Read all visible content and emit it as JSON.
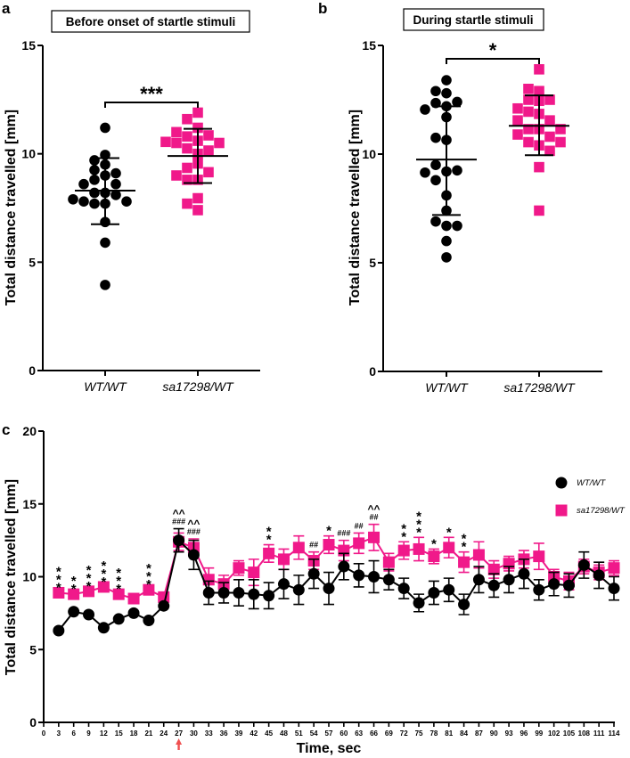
{
  "colors": {
    "wt": "#000000",
    "mutant": "#f0198a",
    "arrow": "#f05050"
  },
  "chart_data": [
    {
      "type": "scatter",
      "panel": "a",
      "title": "Before onset of startle stimuli",
      "ylabel": "Total distance travelled [mm]",
      "xlabel": "",
      "ylim": [
        0,
        15
      ],
      "yticks": [
        0,
        5,
        10,
        15
      ],
      "categories": [
        "WT/WT",
        "sa17298/WT"
      ],
      "significance": "***",
      "series": [
        {
          "name": "WT/WT",
          "marker": "circle",
          "mean": 8.3,
          "sd_upper": 9.8,
          "sd_lower": 6.75,
          "values": [
            11.2,
            9.95,
            9.7,
            9.5,
            9.25,
            9.1,
            9.0,
            8.8,
            8.6,
            8.6,
            8.2,
            8.2,
            8.1,
            7.8,
            7.7,
            7.7,
            7.8,
            7.9,
            6.85,
            5.9,
            3.95
          ]
        },
        {
          "name": "sa17298/WT",
          "marker": "square",
          "mean": 9.9,
          "sd_upper": 11.15,
          "sd_lower": 8.65,
          "values": [
            11.9,
            11.6,
            11.2,
            10.8,
            10.85,
            11.0,
            10.6,
            10.5,
            10.5,
            10.55,
            10.25,
            10.0,
            10.15,
            9.55,
            9.35,
            9.15,
            8.8,
            8.8,
            9.0,
            7.95,
            7.7,
            7.4
          ]
        }
      ]
    },
    {
      "type": "scatter",
      "panel": "b",
      "title": "During startle stimuli",
      "ylabel": "Total distance travelled [mm]",
      "xlabel": "",
      "ylim": [
        0,
        15
      ],
      "yticks": [
        0,
        5,
        10,
        15
      ],
      "categories": [
        "WT/WT",
        "sa17298/WT"
      ],
      "significance": "*",
      "series": [
        {
          "name": "WT/WT",
          "marker": "circle",
          "mean": 9.75,
          "sd_upper": 12.2,
          "sd_lower": 7.2,
          "values": [
            13.4,
            12.8,
            12.9,
            12.2,
            12.35,
            12.4,
            12.05,
            11.7,
            10.65,
            10.75,
            9.2,
            9.5,
            9.25,
            9.15,
            8.8,
            8.1,
            7.4,
            6.7,
            6.9,
            6.7,
            6.0,
            5.25
          ]
        },
        {
          "name": "sa17298/WT",
          "marker": "square",
          "mean": 11.3,
          "sd_upper": 12.7,
          "sd_lower": 9.95,
          "values": [
            13.9,
            12.9,
            13.0,
            12.5,
            12.45,
            12.5,
            12.1,
            11.85,
            11.95,
            11.55,
            11.55,
            11.15,
            11.15,
            11.15,
            10.8,
            10.9,
            10.4,
            10.55,
            10.55,
            10.15,
            9.4,
            7.4
          ]
        }
      ]
    },
    {
      "type": "line",
      "panel": "c",
      "title": "",
      "ylabel": "Total distance travelled [mm]",
      "xlabel": "Time, sec",
      "ylim": [
        0,
        20
      ],
      "yticks": [
        0,
        5,
        10,
        15,
        20
      ],
      "xlim": [
        0,
        114
      ],
      "xticks": [
        0,
        3,
        6,
        9,
        12,
        15,
        18,
        21,
        24,
        27,
        30,
        33,
        36,
        39,
        42,
        45,
        48,
        51,
        54,
        57,
        60,
        63,
        66,
        69,
        72,
        75,
        78,
        81,
        84,
        87,
        90,
        93,
        96,
        99,
        102,
        105,
        108,
        111,
        114
      ],
      "stimulus_marker_x": 27,
      "legend": {
        "position": "right",
        "entries": [
          "WT/WT",
          "sa17298/WT"
        ]
      },
      "x": [
        3,
        6,
        9,
        12,
        15,
        18,
        21,
        24,
        27,
        30,
        33,
        36,
        39,
        42,
        45,
        48,
        51,
        54,
        57,
        60,
        63,
        66,
        69,
        72,
        75,
        78,
        81,
        84,
        87,
        90,
        93,
        96,
        99,
        102,
        105,
        108,
        111,
        114
      ],
      "series": [
        {
          "name": "WT/WT",
          "marker": "circle",
          "values": [
            6.3,
            7.6,
            7.4,
            6.5,
            7.1,
            7.5,
            7.0,
            8.0,
            12.5,
            11.5,
            8.9,
            8.9,
            8.9,
            8.8,
            8.7,
            9.5,
            9.1,
            10.2,
            9.2,
            10.7,
            10.1,
            10.0,
            9.8,
            9.2,
            8.2,
            8.9,
            9.1,
            8.1,
            9.8,
            9.4,
            9.8,
            10.2,
            9.1,
            9.5,
            9.4,
            10.8,
            10.1,
            9.2
          ],
          "err": [
            0,
            0,
            0,
            0,
            0,
            0,
            0,
            0,
            0.8,
            1.0,
            0.8,
            0.7,
            0.9,
            1.0,
            0.9,
            1.0,
            1.0,
            1.0,
            1.1,
            0.9,
            0.8,
            1.1,
            0.7,
            0.7,
            0.6,
            0.8,
            0.8,
            0.7,
            0.9,
            0.8,
            0.9,
            1.0,
            0.7,
            0.8,
            0.8,
            0.9,
            0.9,
            0.8
          ]
        },
        {
          "name": "sa17298/WT",
          "marker": "square",
          "values": [
            8.9,
            8.8,
            9.0,
            9.3,
            8.8,
            8.5,
            9.1,
            8.6,
            12.4,
            12.0,
            9.8,
            9.5,
            10.6,
            10.3,
            11.6,
            11.2,
            12.0,
            11.1,
            12.2,
            11.8,
            12.3,
            12.7,
            11.0,
            11.8,
            11.9,
            11.4,
            12.0,
            11.0,
            11.5,
            10.5,
            10.9,
            11.2,
            11.4,
            10.0,
            9.7,
            10.7,
            10.3,
            10.6
          ],
          "err": [
            0,
            0,
            0,
            0,
            0,
            0,
            0,
            0,
            0.6,
            0.6,
            0.8,
            0.6,
            0.5,
            0.9,
            0.6,
            0.7,
            0.8,
            0.6,
            0.6,
            0.7,
            0.7,
            0.9,
            0.6,
            0.6,
            0.8,
            0.5,
            0.7,
            0.7,
            0.9,
            0.6,
            0.5,
            0.6,
            0.9,
            0.5,
            0.6,
            0.5,
            0.5,
            0.5
          ]
        }
      ],
      "annotations": [
        {
          "x": 3,
          "text": "***"
        },
        {
          "x": 6,
          "text": "**"
        },
        {
          "x": 9,
          "text": "***"
        },
        {
          "x": 12,
          "text": "***"
        },
        {
          "x": 15,
          "text": "***"
        },
        {
          "x": 21,
          "text": "***"
        },
        {
          "x": 27,
          "text": "^^ ###"
        },
        {
          "x": 30,
          "text": "^^ ###"
        },
        {
          "x": 45,
          "text": "**"
        },
        {
          "x": 54,
          "text": "##"
        },
        {
          "x": 57,
          "text": "*"
        },
        {
          "x": 60,
          "text": "###"
        },
        {
          "x": 63,
          "text": "##"
        },
        {
          "x": 66,
          "text": "^^ ##"
        },
        {
          "x": 72,
          "text": "**"
        },
        {
          "x": 75,
          "text": "***"
        },
        {
          "x": 78,
          "text": "*"
        },
        {
          "x": 81,
          "text": "*"
        },
        {
          "x": 84,
          "text": "**"
        }
      ]
    }
  ]
}
